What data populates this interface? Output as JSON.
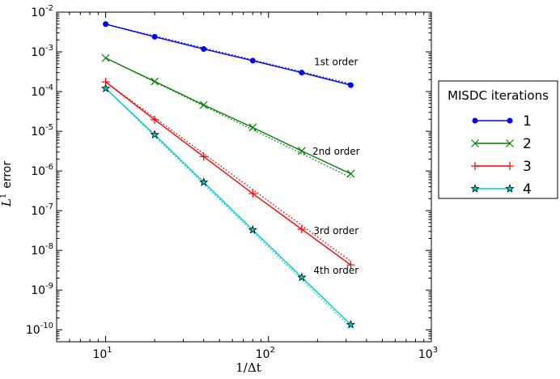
{
  "chart_data": {
    "type": "line",
    "xscale": "log",
    "yscale": "log",
    "xlim": [
      5,
      1000
    ],
    "ylim": [
      5e-11,
      0.01
    ],
    "x_ticks": [
      {
        "value": 10,
        "base": "10",
        "exp": "1"
      },
      {
        "value": 100,
        "base": "10",
        "exp": "2"
      },
      {
        "value": 1000,
        "base": "10",
        "exp": "3"
      }
    ],
    "y_ticks": [
      {
        "value": 1e-10,
        "base": "10",
        "exp": "-10"
      },
      {
        "value": 1e-09,
        "base": "10",
        "exp": "-9"
      },
      {
        "value": 1e-08,
        "base": "10",
        "exp": "-8"
      },
      {
        "value": 1e-07,
        "base": "10",
        "exp": "-7"
      },
      {
        "value": 1e-06,
        "base": "10",
        "exp": "-6"
      },
      {
        "value": 1e-05,
        "base": "10",
        "exp": "-5"
      },
      {
        "value": 0.0001,
        "base": "10",
        "exp": "-4"
      },
      {
        "value": 0.001,
        "base": "10",
        "exp": "-3"
      },
      {
        "value": 0.01,
        "base": "10",
        "exp": "-2"
      }
    ],
    "xlabel": "1/Δt",
    "ylabel_main": "L",
    "ylabel_sup": "1",
    "ylabel_rest": "error",
    "x": [
      10,
      20,
      40,
      80,
      160,
      320
    ],
    "series": [
      {
        "name": "1",
        "color": "#0000ff",
        "marker": "dot",
        "values": [
          0.005,
          0.0024,
          0.00118,
          0.0006,
          0.0003,
          0.000145
        ]
      },
      {
        "name": "2",
        "color": "#008000",
        "marker": "x",
        "values": [
          0.0007,
          0.00018,
          4.6e-05,
          1.25e-05,
          3.2e-06,
          8.5e-07
        ]
      },
      {
        "name": "3",
        "color": "#ff0000",
        "marker": "plus",
        "values": [
          0.000175,
          1.95e-05,
          2.3e-06,
          2.7e-07,
          3.4e-08,
          4.3e-09
        ]
      },
      {
        "name": "4",
        "color": "#00cccc",
        "marker": "star",
        "values": [
          0.00012,
          8.2e-06,
          5.2e-07,
          3.3e-08,
          2.1e-09,
          1.35e-10
        ]
      }
    ],
    "reference_lines": [
      {
        "order": 1,
        "y_at_first": 0.005
      },
      {
        "order": 2,
        "y_at_first": 0.0007
      },
      {
        "order": 3,
        "y_at_first": 0.000175
      },
      {
        "order": 4,
        "y_at_first": 0.00012
      }
    ],
    "annotations": [
      {
        "text": "1st order",
        "x": 260,
        "y": 0.00046
      },
      {
        "text": "2nd order",
        "x": 260,
        "y": 2.6e-06
      },
      {
        "text": "3rd order",
        "x": 260,
        "y": 2.6e-08
      },
      {
        "text": "4th order",
        "x": 260,
        "y": 2.6e-09
      }
    ],
    "legend": {
      "title": "MISDC iterations",
      "placement": "outside-right"
    }
  }
}
